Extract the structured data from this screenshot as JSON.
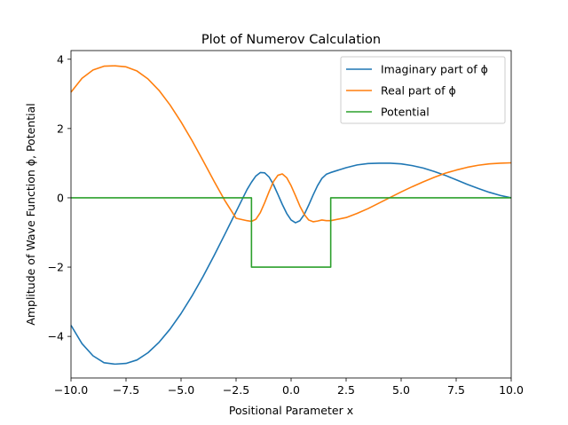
{
  "chart_data": {
    "type": "line",
    "title": "Plot of Numerov Calculation",
    "xlabel": "Positional Parameter x",
    "ylabel": "Amplitude of Wave Function ϕ, Potential",
    "xlim": [
      -10,
      10
    ],
    "ylim": [
      -5.2,
      4.25
    ],
    "grid": false,
    "legend_position": "top-right",
    "x_ticks": [
      {
        "value": -10,
        "label": "−10.0"
      },
      {
        "value": -7.5,
        "label": "−7.5"
      },
      {
        "value": -5,
        "label": "−5.0"
      },
      {
        "value": -2.5,
        "label": "−2.5"
      },
      {
        "value": 0,
        "label": "0.0"
      },
      {
        "value": 2.5,
        "label": "2.5"
      },
      {
        "value": 5,
        "label": "5.0"
      },
      {
        "value": 7.5,
        "label": "7.5"
      },
      {
        "value": 10,
        "label": "10.0"
      }
    ],
    "y_ticks": [
      {
        "value": -4,
        "label": "−4"
      },
      {
        "value": -2,
        "label": "−2"
      },
      {
        "value": 0,
        "label": "0"
      },
      {
        "value": 2,
        "label": "2"
      },
      {
        "value": 4,
        "label": "4"
      }
    ],
    "series": [
      {
        "name": "Imaginary part of ϕ",
        "color": "#1f77b4",
        "x": [
          -10,
          -9.5,
          -9,
          -8.5,
          -8,
          -7.5,
          -7,
          -6.5,
          -6,
          -5.5,
          -5,
          -4.5,
          -4,
          -3.5,
          -3,
          -2.5,
          -2,
          -1.8,
          -1.6,
          -1.4,
          -1.2,
          -1.0,
          -0.8,
          -0.6,
          -0.4,
          -0.2,
          0,
          0.2,
          0.4,
          0.6,
          0.8,
          1.0,
          1.2,
          1.4,
          1.6,
          1.8,
          2.5,
          3,
          3.5,
          4,
          4.5,
          5,
          5.5,
          6,
          6.5,
          7,
          7.5,
          8,
          8.5,
          9,
          9.5,
          10
        ],
        "y": [
          -3.68,
          -4.21,
          -4.56,
          -4.76,
          -4.8,
          -4.78,
          -4.68,
          -4.47,
          -4.17,
          -3.79,
          -3.34,
          -2.83,
          -2.27,
          -1.67,
          -1.04,
          -0.4,
          0.24,
          0.45,
          0.63,
          0.73,
          0.72,
          0.6,
          0.38,
          0.1,
          -0.19,
          -0.45,
          -0.64,
          -0.72,
          -0.66,
          -0.48,
          -0.21,
          0.08,
          0.35,
          0.56,
          0.68,
          0.73,
          0.87,
          0.95,
          0.99,
          1.0,
          1.0,
          0.98,
          0.93,
          0.86,
          0.76,
          0.65,
          0.52,
          0.39,
          0.27,
          0.16,
          0.07,
          0.0
        ]
      },
      {
        "name": "Real part of ϕ",
        "color": "#ff7f0e",
        "x": [
          -10,
          -9.5,
          -9,
          -8.5,
          -8,
          -7.5,
          -7,
          -6.5,
          -6,
          -5.5,
          -5,
          -4.5,
          -4,
          -3.5,
          -3,
          -2.5,
          -2,
          -1.8,
          -1.6,
          -1.4,
          -1.2,
          -1.0,
          -0.8,
          -0.6,
          -0.4,
          -0.2,
          0,
          0.2,
          0.4,
          0.6,
          0.8,
          1.0,
          1.2,
          1.4,
          1.6,
          1.8,
          2.5,
          3,
          3.5,
          4,
          4.5,
          5,
          5.5,
          6,
          6.5,
          7,
          7.5,
          8,
          8.5,
          9,
          9.5,
          10
        ],
        "y": [
          3.05,
          3.45,
          3.69,
          3.8,
          3.81,
          3.78,
          3.66,
          3.43,
          3.1,
          2.68,
          2.19,
          1.65,
          1.07,
          0.48,
          -0.09,
          -0.59,
          -0.66,
          -0.68,
          -0.62,
          -0.43,
          -0.14,
          0.18,
          0.47,
          0.65,
          0.69,
          0.58,
          0.35,
          0.06,
          -0.24,
          -0.48,
          -0.64,
          -0.69,
          -0.67,
          -0.64,
          -0.66,
          -0.66,
          -0.57,
          -0.45,
          -0.31,
          -0.15,
          0.01,
          0.17,
          0.32,
          0.46,
          0.59,
          0.71,
          0.8,
          0.88,
          0.94,
          0.98,
          1.0,
          1.01
        ]
      },
      {
        "name": "Potential",
        "color": "#2ca02c",
        "x": [
          -10,
          -1.8,
          -1.8,
          1.8,
          1.8,
          10
        ],
        "y": [
          0,
          0,
          -2,
          -2,
          0,
          0
        ]
      }
    ]
  }
}
